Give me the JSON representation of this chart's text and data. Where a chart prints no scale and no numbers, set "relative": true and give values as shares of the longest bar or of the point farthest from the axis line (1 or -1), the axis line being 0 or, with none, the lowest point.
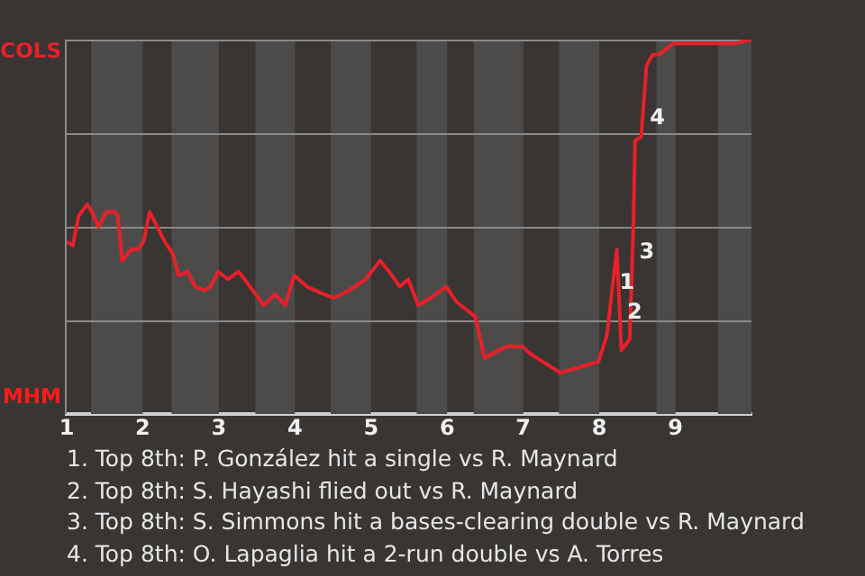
{
  "chart_data": {
    "type": "line",
    "x": [
      1.0,
      1.08,
      1.16,
      1.27,
      1.33,
      1.42,
      1.52,
      1.63,
      1.67,
      1.73,
      1.85,
      1.94,
      2.01,
      2.09,
      2.19,
      2.29,
      2.39,
      2.47,
      2.59,
      2.69,
      2.81,
      2.89,
      2.99,
      3.12,
      3.26,
      3.41,
      3.59,
      3.74,
      3.87,
      3.99,
      4.16,
      4.38,
      4.51,
      4.71,
      4.93,
      5.12,
      5.24,
      5.38,
      5.49,
      5.62,
      5.78,
      5.99,
      6.12,
      6.37,
      6.49,
      6.78,
      6.99,
      7.1,
      7.49,
      7.99,
      8.1,
      8.23,
      8.29,
      8.4,
      8.45,
      8.47,
      8.55,
      8.62,
      8.7,
      8.79,
      8.97,
      9.59,
      9.79,
      10
    ],
    "series": [
      {
        "color": "#e8202a",
        "values": [
          0.46,
          0.45,
          0.53,
          0.56,
          0.54,
          0.5,
          0.54,
          0.54,
          0.53,
          0.41,
          0.44,
          0.44,
          0.46,
          0.54,
          0.5,
          0.46,
          0.43,
          0.37,
          0.38,
          0.34,
          0.33,
          0.34,
          0.38,
          0.36,
          0.38,
          0.34,
          0.29,
          0.32,
          0.29,
          0.37,
          0.34,
          0.32,
          0.31,
          0.33,
          0.36,
          0.41,
          0.38,
          0.34,
          0.36,
          0.29,
          0.31,
          0.34,
          0.3,
          0.26,
          0.15,
          0.18,
          0.18,
          0.16,
          0.11,
          0.14,
          0.21,
          0.44,
          0.17,
          0.2,
          0.52,
          0.73,
          0.74,
          0.93,
          0.96,
          0.96,
          0.99,
          0.99,
          0.99,
          1.0
        ]
      }
    ],
    "relative": true,
    "xlim": [
      1,
      10
    ],
    "xticks": [
      1,
      2,
      3,
      4,
      5,
      6,
      7,
      8,
      9
    ],
    "marker": "none",
    "line_style": "solid",
    "ref_lines": [
      {
        "axis": "y",
        "value": 0.25,
        "color": "#8a8a8a"
      },
      {
        "axis": "y",
        "value": 0.5,
        "color": "#8a8a8a"
      },
      {
        "axis": "y",
        "value": 0.75,
        "color": "#8a8a8a"
      },
      {
        "axis": "y",
        "value": 1,
        "color": "#8a8a8a"
      }
    ],
    "bands": [
      {
        "axis": "x",
        "from": 1.32,
        "to": 2,
        "color": "#4d4b49"
      },
      {
        "axis": "x",
        "from": 2.38,
        "to": 3,
        "color": "#4d4b49"
      },
      {
        "axis": "x",
        "from": 3.48,
        "to": 4,
        "color": "#4d4b49"
      },
      {
        "axis": "x",
        "from": 4.47,
        "to": 5,
        "color": "#4d4b49"
      },
      {
        "axis": "x",
        "from": 5.6,
        "to": 6,
        "color": "#4d4b49"
      },
      {
        "axis": "x",
        "from": 6.35,
        "to": 7,
        "color": "#4d4b49"
      },
      {
        "axis": "x",
        "from": 7.47,
        "to": 8,
        "color": "#4d4b49"
      },
      {
        "axis": "x",
        "from": 8.75,
        "to": 9,
        "color": "#4d4b49"
      },
      {
        "axis": "x",
        "from": 9.56,
        "to": 10,
        "color": "#4d4b49"
      }
    ],
    "annotations": [
      "COLS",
      "MHM",
      {
        "text": "1",
        "x": 8.17,
        "y": 0.35
      },
      {
        "text": "2",
        "x": 8.27,
        "y": 0.27
      },
      {
        "text": "3",
        "x": 8.43,
        "y": 0.43
      },
      {
        "text": "4",
        "x": 8.57,
        "y": 0.79
      },
      "1. Top 8th: P. González hit a single vs R. Maynard",
      "2. Top 8th: S. Hayashi flied out vs R. Maynard",
      "3. Top 8th: S. Simmons hit a bases-clearing double vs R. Maynard",
      "4. Top 8th: O. Lapaglia hit a 2-run double vs A. Torres"
    ]
  }
}
